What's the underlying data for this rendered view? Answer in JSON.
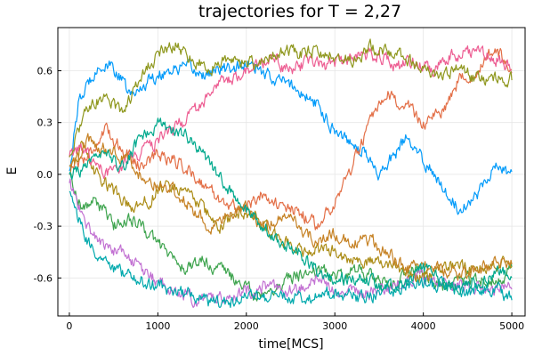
{
  "chart_data": {
    "type": "line",
    "title": "trajectories for T = 2,27",
    "xlabel": "time[MCS]",
    "ylabel": "E",
    "xlim": [
      -130,
      5150
    ],
    "ylim": [
      -0.82,
      0.85
    ],
    "grid": true,
    "legend": "none",
    "xticks": [
      0,
      1000,
      2000,
      3000,
      4000,
      5000
    ],
    "xtick_labels": [
      "0",
      "1000",
      "2000",
      "3000",
      "4000",
      "5000"
    ],
    "yticks": [
      -0.6,
      -0.3,
      0.0,
      0.3,
      0.6
    ],
    "ytick_labels": [
      "-0.6",
      "-0.3",
      "0.0",
      "0.3",
      "0.6"
    ],
    "noise_amplitude": 0.04,
    "series": [
      {
        "color": "#009AFA",
        "x": [
          0,
          100,
          300,
          500,
          700,
          900,
          1100,
          1300,
          1500,
          1700,
          2000,
          2200,
          2500,
          2800,
          3000,
          3300,
          3500,
          3800,
          4000,
          4200,
          4400,
          4600,
          4800,
          5000
        ],
        "y": [
          0.02,
          0.4,
          0.62,
          0.62,
          0.45,
          0.55,
          0.6,
          0.62,
          0.58,
          0.6,
          0.64,
          0.58,
          0.52,
          0.4,
          0.26,
          0.15,
          0.0,
          0.2,
          0.08,
          -0.05,
          -0.2,
          -0.12,
          0.05,
          0.0
        ]
      },
      {
        "color": "#E36F47",
        "x": [
          0,
          200,
          400,
          600,
          800,
          1000,
          1200,
          1400,
          1600,
          1800,
          2000,
          2200,
          2400,
          2600,
          2800,
          3000,
          3200,
          3400,
          3600,
          3800,
          4000,
          4200,
          4400,
          4600,
          4800,
          5000
        ],
        "y": [
          0.05,
          0.1,
          0.25,
          0.15,
          0.05,
          0.12,
          0.08,
          0.0,
          -0.1,
          -0.18,
          -0.2,
          -0.1,
          -0.2,
          -0.22,
          -0.3,
          -0.15,
          0.05,
          0.3,
          0.45,
          0.4,
          0.3,
          0.35,
          0.55,
          0.6,
          0.72,
          0.62
        ]
      },
      {
        "color": "#3EA44E",
        "x": [
          0,
          150,
          300,
          500,
          700,
          900,
          1100,
          1300,
          1500,
          1700,
          1900,
          2100,
          2300,
          2500,
          2800,
          3000,
          3300,
          3600,
          3900,
          4200,
          4500,
          4800,
          5000
        ],
        "y": [
          0.0,
          -0.2,
          -0.15,
          -0.3,
          -0.25,
          -0.35,
          -0.45,
          -0.55,
          -0.5,
          -0.55,
          -0.62,
          -0.7,
          -0.66,
          -0.6,
          -0.55,
          -0.58,
          -0.55,
          -0.65,
          -0.55,
          -0.65,
          -0.6,
          -0.62,
          -0.55
        ]
      },
      {
        "color": "#C271D2",
        "x": [
          0,
          200,
          400,
          600,
          800,
          1000,
          1200,
          1400,
          1600,
          1800,
          2000,
          2200,
          2400,
          2600,
          2800,
          3000,
          3300,
          3600,
          3900,
          4200,
          4500,
          4800,
          5000
        ],
        "y": [
          -0.05,
          -0.3,
          -0.42,
          -0.45,
          -0.55,
          -0.62,
          -0.68,
          -0.72,
          -0.72,
          -0.7,
          -0.68,
          -0.65,
          -0.68,
          -0.66,
          -0.62,
          -0.65,
          -0.7,
          -0.66,
          -0.6,
          -0.6,
          -0.65,
          -0.68,
          -0.66
        ]
      },
      {
        "color": "#AC8D18",
        "x": [
          0,
          150,
          300,
          500,
          700,
          900,
          1100,
          1300,
          1500,
          1700,
          1900,
          2100,
          2300,
          2500,
          2700,
          2900,
          3100,
          3300,
          3500,
          3700,
          3900,
          4100,
          4300,
          4500,
          4700,
          5000
        ],
        "y": [
          0.05,
          0.15,
          0.0,
          -0.1,
          -0.2,
          -0.15,
          -0.05,
          -0.1,
          -0.2,
          -0.3,
          -0.22,
          -0.25,
          -0.35,
          -0.4,
          -0.45,
          -0.42,
          -0.48,
          -0.5,
          -0.5,
          -0.55,
          -0.6,
          -0.58,
          -0.52,
          -0.55,
          -0.55,
          -0.5
        ]
      },
      {
        "color": "#00A9AD",
        "x": [
          0,
          200,
          400,
          600,
          800,
          1000,
          1200,
          1400,
          1600,
          1800,
          2000,
          2200,
          2400,
          2600,
          2800,
          3000,
          3300,
          3600,
          3900,
          4200,
          4500,
          4800,
          5000
        ],
        "y": [
          -0.1,
          -0.4,
          -0.5,
          -0.58,
          -0.62,
          -0.65,
          -0.68,
          -0.7,
          -0.75,
          -0.75,
          -0.7,
          -0.72,
          -0.7,
          -0.72,
          -0.7,
          -0.68,
          -0.72,
          -0.68,
          -0.62,
          -0.65,
          -0.68,
          -0.66,
          -0.72
        ]
      },
      {
        "color": "#ED5E93",
        "x": [
          0,
          150,
          300,
          500,
          700,
          900,
          1100,
          1300,
          1500,
          1700,
          1900,
          2100,
          2300,
          2500,
          2700,
          2900,
          3100,
          3300,
          3500,
          3700,
          3900,
          4100,
          4300,
          4500,
          4700,
          5000
        ],
        "y": [
          0.1,
          0.15,
          0.05,
          0.0,
          0.1,
          0.15,
          0.25,
          0.3,
          0.4,
          0.52,
          0.58,
          0.62,
          0.66,
          0.6,
          0.65,
          0.62,
          0.66,
          0.7,
          0.68,
          0.62,
          0.65,
          0.6,
          0.68,
          0.72,
          0.7,
          0.62
        ]
      },
      {
        "color": "#C68225",
        "x": [
          0,
          200,
          400,
          600,
          800,
          1000,
          1200,
          1400,
          1600,
          1800,
          2000,
          2200,
          2400,
          2600,
          2800,
          3000,
          3200,
          3400,
          3600,
          3800,
          4000,
          4200,
          4400,
          4600,
          4800,
          5000
        ],
        "y": [
          0.0,
          0.2,
          0.15,
          0.1,
          0.0,
          -0.05,
          -0.1,
          -0.2,
          -0.3,
          -0.25,
          -0.2,
          -0.3,
          -0.25,
          -0.3,
          -0.4,
          -0.35,
          -0.4,
          -0.38,
          -0.45,
          -0.55,
          -0.52,
          -0.55,
          -0.6,
          -0.55,
          -0.52,
          -0.5
        ]
      },
      {
        "color": "#00A98D",
        "x": [
          0,
          200,
          400,
          600,
          800,
          1000,
          1200,
          1400,
          1600,
          1800,
          2000,
          2200,
          2400,
          2600,
          2800,
          3000,
          3200,
          3400,
          3600,
          3800,
          4000,
          4200,
          4400,
          4600,
          4800,
          5000
        ],
        "y": [
          0.0,
          0.05,
          0.1,
          0.05,
          0.2,
          0.3,
          0.25,
          0.2,
          0.05,
          -0.1,
          -0.2,
          -0.3,
          -0.4,
          -0.45,
          -0.55,
          -0.62,
          -0.6,
          -0.62,
          -0.66,
          -0.6,
          -0.55,
          -0.62,
          -0.66,
          -0.62,
          -0.58,
          -0.55
        ]
      },
      {
        "color": "#8E971D",
        "x": [
          0,
          200,
          400,
          600,
          800,
          1000,
          1200,
          1400,
          1600,
          1800,
          2000,
          2200,
          2400,
          2600,
          2800,
          3000,
          3200,
          3400,
          3600,
          3800,
          4000,
          4200,
          4400,
          4600,
          4800,
          5000
        ],
        "y": [
          0.1,
          0.4,
          0.45,
          0.35,
          0.55,
          0.7,
          0.75,
          0.65,
          0.62,
          0.66,
          0.64,
          0.66,
          0.72,
          0.7,
          0.72,
          0.68,
          0.66,
          0.74,
          0.72,
          0.68,
          0.6,
          0.58,
          0.62,
          0.55,
          0.56,
          0.55
        ]
      }
    ]
  }
}
